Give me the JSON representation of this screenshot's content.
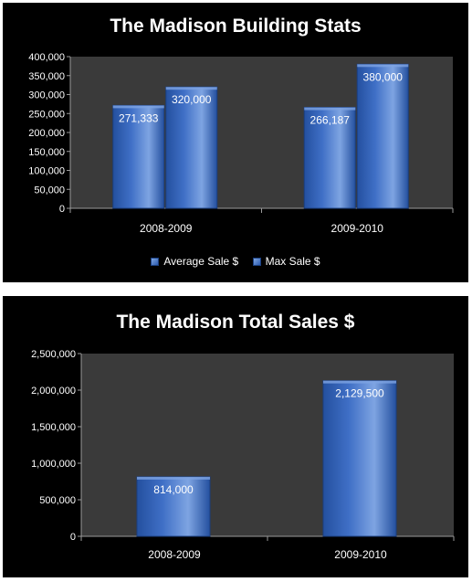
{
  "colors": {
    "background": "#000000",
    "plot_area": "#3a3a3a",
    "bar_fill": "#3f6fc6",
    "bar_light": "#7ea4e2",
    "bar_dark": "#24509f",
    "text": "#ffffff"
  },
  "chart_data": [
    {
      "type": "bar",
      "title": "The Madison Building Stats",
      "categories": [
        "2008-2009",
        "2009-2010"
      ],
      "series": [
        {
          "name": "Average Sale $",
          "values": [
            271333,
            266187
          ],
          "labels": [
            "271,333",
            "266,187"
          ]
        },
        {
          "name": "Max Sale $",
          "values": [
            320000,
            380000
          ],
          "labels": [
            "320,000",
            "380,000"
          ]
        }
      ],
      "ylim": [
        0,
        400000
      ],
      "yticks": [
        "0",
        "50,000",
        "100,000",
        "150,000",
        "200,000",
        "250,000",
        "300,000",
        "350,000",
        "400,000"
      ],
      "grid": false,
      "legend_position": "bottom"
    },
    {
      "type": "bar",
      "title": "The Madison Total Sales $",
      "categories": [
        "2008-2009",
        "2009-2010"
      ],
      "series": [
        {
          "values": [
            814000,
            2129500
          ],
          "labels": [
            "814,000",
            "2,129,500"
          ]
        }
      ],
      "ylim": [
        0,
        2500000
      ],
      "yticks": [
        "0",
        "500,000",
        "1,000,000",
        "1,500,000",
        "2,000,000",
        "2,500,000"
      ],
      "grid": false
    }
  ]
}
